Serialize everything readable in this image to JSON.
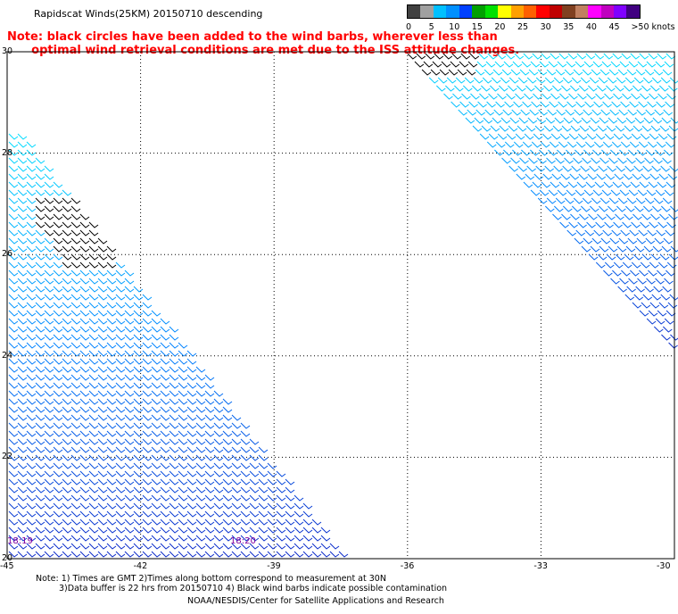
{
  "header": {
    "title": "Rapidscat Winds(25KM) 20150710 descending",
    "note_line1": "Note: black circles have been added to the wind barbs, wherever less than",
    "note_line2": "      optimal wind retrieval conditions are met due to the ISS attitude changes."
  },
  "colorbar": {
    "units": "knots",
    "colors": [
      "#404040",
      "#a0a0a0",
      "#00c0ff",
      "#0090ff",
      "#0040ff",
      "#00a000",
      "#00e000",
      "#ffff00",
      "#ffa000",
      "#ff6000",
      "#ff0000",
      "#c00000",
      "#804020",
      "#c08060",
      "#ff00ff",
      "#c000c0",
      "#8000ff",
      "#400080"
    ],
    "labels": [
      "0",
      "5",
      "10",
      "15",
      "20",
      "25",
      "30",
      "35",
      "40",
      "45",
      ">50 knots"
    ]
  },
  "axes": {
    "x_ticks": [
      "-45",
      "-42",
      "-39",
      "-36",
      "-33",
      "-30"
    ],
    "y_ticks": [
      "30",
      "28",
      "26",
      "24",
      "22",
      "20"
    ]
  },
  "times": {
    "left": "18:19",
    "right": "18:20"
  },
  "footer": {
    "line1": "Note: 1) Times are GMT 2)Times along bottom correspond to measurement at 30N",
    "line2": "3)Data buffer is 22 hrs from 20150710 4) Black wind barbs indicate possible contamination",
    "line3": "NOAA/NESDIS/Center for Satellite Applications and Research"
  }
}
